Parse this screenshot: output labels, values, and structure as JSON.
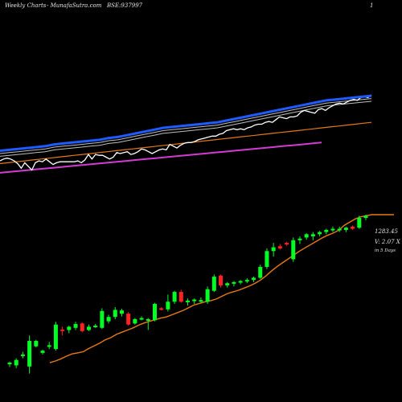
{
  "header": {
    "brand": "Weekly Charts",
    "site": "-  MunafaSutra.com",
    "symbol": "BSE:937997",
    "page_num": "1"
  },
  "side_labels": {
    "price": "1283.45",
    "volume": "V: 2.07 X",
    "period": "in 5 Days"
  },
  "colors": {
    "up": "#00ff22",
    "down": "#ff2222",
    "ma_orange": "#e57a14",
    "ma_blue": "#1f5cff",
    "ma_white": "#ffffff",
    "ma_gray": "#bdbdbd",
    "ma_pink": "#d23cd2",
    "background": "#000000"
  },
  "chart_data": {
    "type": "candlestick",
    "candles": [
      {
        "o": 1000,
        "h": 1002,
        "l": 992,
        "c": 998,
        "dir": "up"
      },
      {
        "o": 995,
        "h": 1008,
        "l": 990,
        "c": 1005,
        "dir": "up"
      },
      {
        "o": 1012,
        "h": 1020,
        "l": 1008,
        "c": 1015,
        "dir": "up"
      },
      {
        "o": 993,
        "h": 1050,
        "l": 980,
        "c": 1040,
        "dir": "up"
      },
      {
        "o": 1040,
        "h": 1042,
        "l": 1028,
        "c": 1030,
        "dir": "up"
      },
      {
        "o": 1018,
        "h": 1024,
        "l": 1015,
        "c": 1022,
        "dir": "up"
      },
      {
        "o": 1030,
        "h": 1038,
        "l": 1025,
        "c": 1032,
        "dir": "up"
      },
      {
        "o": 1025,
        "h": 1075,
        "l": 1022,
        "c": 1070,
        "dir": "up"
      },
      {
        "o": 1061,
        "h": 1066,
        "l": 1050,
        "c": 1060,
        "dir": "down"
      },
      {
        "o": 1060,
        "h": 1068,
        "l": 1054,
        "c": 1066,
        "dir": "up"
      },
      {
        "o": 1064,
        "h": 1075,
        "l": 1060,
        "c": 1071,
        "dir": "up"
      },
      {
        "o": 1072,
        "h": 1074,
        "l": 1056,
        "c": 1058,
        "dir": "down"
      },
      {
        "o": 1060,
        "h": 1070,
        "l": 1058,
        "c": 1066,
        "dir": "up"
      },
      {
        "o": 1066,
        "h": 1071,
        "l": 1064,
        "c": 1068,
        "dir": "up"
      },
      {
        "o": 1064,
        "h": 1100,
        "l": 1062,
        "c": 1095,
        "dir": "up"
      },
      {
        "o": 1076,
        "h": 1088,
        "l": 1072,
        "c": 1084,
        "dir": "up"
      },
      {
        "o": 1084,
        "h": 1102,
        "l": 1080,
        "c": 1097,
        "dir": "up"
      },
      {
        "o": 1096,
        "h": 1099,
        "l": 1085,
        "c": 1090,
        "dir": "up"
      },
      {
        "o": 1090,
        "h": 1093,
        "l": 1068,
        "c": 1070,
        "dir": "down"
      },
      {
        "o": 1072,
        "h": 1082,
        "l": 1070,
        "c": 1080,
        "dir": "up"
      },
      {
        "o": 1080,
        "h": 1085,
        "l": 1078,
        "c": 1082,
        "dir": "up"
      },
      {
        "o": 1080,
        "h": 1082,
        "l": 1060,
        "c": 1078,
        "dir": "up"
      },
      {
        "o": 1078,
        "h": 1110,
        "l": 1076,
        "c": 1108,
        "dir": "up"
      },
      {
        "o": 1099,
        "h": 1102,
        "l": 1096,
        "c": 1100,
        "dir": "down"
      },
      {
        "o": 1098,
        "h": 1125,
        "l": 1094,
        "c": 1112,
        "dir": "up"
      },
      {
        "o": 1112,
        "h": 1132,
        "l": 1108,
        "c": 1130,
        "dir": "up"
      },
      {
        "o": 1130,
        "h": 1134,
        "l": 1110,
        "c": 1112,
        "dir": "down"
      },
      {
        "o": 1112,
        "h": 1118,
        "l": 1105,
        "c": 1114,
        "dir": "up"
      },
      {
        "o": 1114,
        "h": 1118,
        "l": 1108,
        "c": 1116,
        "dir": "up"
      },
      {
        "o": 1115,
        "h": 1120,
        "l": 1110,
        "c": 1112,
        "dir": "up"
      },
      {
        "o": 1112,
        "h": 1140,
        "l": 1108,
        "c": 1135,
        "dir": "up"
      },
      {
        "o": 1132,
        "h": 1162,
        "l": 1130,
        "c": 1158,
        "dir": "up"
      },
      {
        "o": 1160,
        "h": 1162,
        "l": 1138,
        "c": 1142,
        "dir": "down"
      },
      {
        "o": 1142,
        "h": 1148,
        "l": 1138,
        "c": 1146,
        "dir": "up"
      },
      {
        "o": 1146,
        "h": 1150,
        "l": 1140,
        "c": 1148,
        "dir": "up"
      },
      {
        "o": 1148,
        "h": 1152,
        "l": 1144,
        "c": 1150,
        "dir": "up"
      },
      {
        "o": 1150,
        "h": 1155,
        "l": 1146,
        "c": 1152,
        "dir": "up"
      },
      {
        "o": 1152,
        "h": 1158,
        "l": 1148,
        "c": 1156,
        "dir": "up"
      },
      {
        "o": 1156,
        "h": 1180,
        "l": 1154,
        "c": 1176,
        "dir": "up"
      },
      {
        "o": 1176,
        "h": 1210,
        "l": 1172,
        "c": 1205,
        "dir": "up"
      },
      {
        "o": 1205,
        "h": 1220,
        "l": 1195,
        "c": 1212,
        "dir": "up"
      },
      {
        "o": 1214,
        "h": 1218,
        "l": 1208,
        "c": 1210,
        "dir": "down"
      },
      {
        "o": 1220,
        "h": 1222,
        "l": 1215,
        "c": 1218,
        "dir": "down"
      },
      {
        "o": 1190,
        "h": 1230,
        "l": 1185,
        "c": 1225,
        "dir": "up"
      },
      {
        "o": 1225,
        "h": 1232,
        "l": 1218,
        "c": 1228,
        "dir": "up"
      },
      {
        "o": 1230,
        "h": 1238,
        "l": 1226,
        "c": 1236,
        "dir": "up"
      },
      {
        "o": 1232,
        "h": 1240,
        "l": 1225,
        "c": 1236,
        "dir": "up"
      },
      {
        "o": 1236,
        "h": 1242,
        "l": 1232,
        "c": 1240,
        "dir": "up"
      },
      {
        "o": 1240,
        "h": 1246,
        "l": 1236,
        "c": 1244,
        "dir": "up"
      },
      {
        "o": 1244,
        "h": 1250,
        "l": 1240,
        "c": 1246,
        "dir": "up"
      },
      {
        "o": 1246,
        "h": 1250,
        "l": 1240,
        "c": 1244,
        "dir": "up"
      },
      {
        "o": 1244,
        "h": 1250,
        "l": 1240,
        "c": 1248,
        "dir": "up"
      },
      {
        "o": 1250,
        "h": 1252,
        "l": 1244,
        "c": 1246,
        "dir": "down"
      },
      {
        "o": 1248,
        "h": 1270,
        "l": 1246,
        "c": 1266,
        "dir": "up"
      },
      {
        "o": 1266,
        "h": 1272,
        "l": 1262,
        "c": 1270,
        "dir": "up"
      }
    ],
    "ma_price": [
      1000,
      1003,
      1007,
      1012,
      1016,
      1018,
      1020,
      1026,
      1031,
      1036,
      1042,
      1046,
      1052,
      1056,
      1060,
      1064,
      1069,
      1073,
      1076,
      1079,
      1082,
      1084,
      1088,
      1092,
      1096,
      1101,
      1106,
      1109,
      1112,
      1114,
      1117,
      1122,
      1127,
      1130,
      1133,
      1137,
      1141,
      1146,
      1152,
      1160,
      1169,
      1177,
      1184,
      1191,
      1198,
      1205,
      1211,
      1217,
      1223,
      1229,
      1234,
      1238,
      1243,
      1252,
      1258,
      1264,
      1268,
      1270,
      1272,
      1272,
      1272,
      1272,
      1272
    ],
    "indicator_white": [
      28,
      30,
      31,
      30,
      28,
      25,
      20,
      26,
      22,
      18,
      26,
      28,
      27,
      30,
      27,
      24,
      26,
      27,
      27,
      27,
      27,
      27,
      28,
      26,
      29,
      35,
      30,
      35,
      34,
      34,
      32,
      30,
      32,
      37,
      36,
      37,
      38,
      35,
      36,
      38,
      41,
      40,
      38,
      36,
      38,
      40,
      41,
      40,
      46,
      44,
      42,
      45,
      47,
      48,
      48,
      49,
      51,
      52,
      53,
      54,
      55,
      55,
      57,
      58,
      61,
      62,
      63,
      62,
      63,
      62,
      64,
      65,
      67,
      68,
      68,
      70,
      71,
      70,
      73,
      76,
      75,
      74,
      76,
      76,
      77,
      81,
      83,
      82,
      81,
      80,
      84,
      85,
      83,
      86,
      88,
      90,
      91,
      90,
      92,
      94,
      95,
      94,
      97,
      98,
      97,
      100
    ],
    "indicator_blue": [
      39,
      40,
      41,
      42,
      43,
      44,
      46,
      47,
      48,
      49,
      50,
      51,
      53,
      54,
      56,
      58,
      60,
      62,
      64,
      65,
      66,
      67,
      68,
      69,
      70,
      72,
      74,
      76,
      78,
      80,
      82,
      84,
      86,
      88,
      90,
      92,
      94,
      95,
      96,
      97,
      98,
      99
    ],
    "indicator_orange": [
      25,
      26,
      27,
      28,
      29,
      30,
      31,
      32,
      33,
      34,
      35,
      36,
      37,
      38,
      39,
      40,
      41,
      42,
      43,
      44,
      45,
      46,
      47,
      48,
      49,
      50,
      51,
      52,
      53,
      54,
      55,
      56,
      57,
      58,
      59,
      60,
      61,
      62,
      63,
      64,
      65,
      66,
      67,
      68,
      69,
      70
    ],
    "indicator_pink": [
      15,
      16,
      17,
      18,
      19,
      20,
      21,
      22,
      23,
      24,
      25,
      26,
      27,
      28,
      29,
      30,
      31,
      32,
      33,
      34,
      35,
      36,
      37,
      38,
      39,
      40,
      41,
      42,
      43,
      44,
      45,
      46,
      47,
      48
    ]
  }
}
